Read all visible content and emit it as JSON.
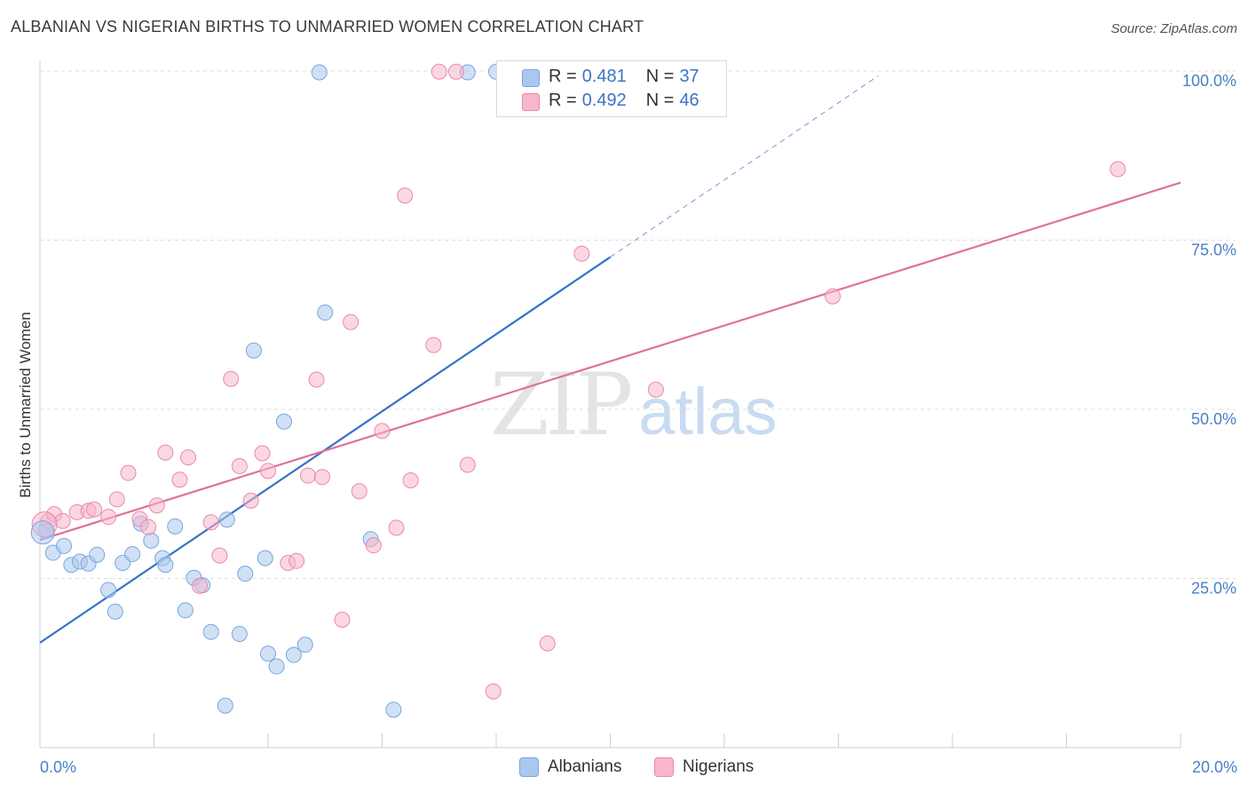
{
  "header": {
    "title": "ALBANIAN VS NIGERIAN BIRTHS TO UNMARRIED WOMEN CORRELATION CHART",
    "source": "Source: ZipAtlas.com"
  },
  "watermark": {
    "zip": "ZIP",
    "atlas": "atlas"
  },
  "legend": {
    "rows": [
      {
        "r_label": "R =",
        "r_value": "0.481",
        "n_label": "N =",
        "n_value": "37",
        "color": "#a9c8ef"
      },
      {
        "r_label": "R =",
        "r_value": "0.492",
        "n_label": "N =",
        "n_value": "46",
        "color": "#f7b6cb"
      }
    ]
  },
  "bottom_legend": [
    {
      "label": "Albanians",
      "color": "#a9c8ef"
    },
    {
      "label": "Nigerians",
      "color": "#f7b6cb"
    }
  ],
  "chart_data": {
    "type": "scatter",
    "title": "ALBANIAN VS NIGERIAN BIRTHS TO UNMARRIED WOMEN CORRELATION CHART",
    "xlabel": "",
    "ylabel": "Births to Unmarried Women",
    "xlim": [
      0,
      20
    ],
    "ylim": [
      0,
      100
    ],
    "x_ticks": [
      {
        "value": 0,
        "label": "0.0%"
      },
      {
        "value": 20,
        "label": "20.0%"
      }
    ],
    "y_ticks": [
      {
        "value": 25,
        "label": "25.0%"
      },
      {
        "value": 50,
        "label": "50.0%"
      },
      {
        "value": 75,
        "label": "75.0%"
      },
      {
        "value": 100,
        "label": "100.0%"
      }
    ],
    "grid": true,
    "series": [
      {
        "name": "Albanians",
        "color": "#a9c8ef",
        "stroke": "#7aa6de",
        "trend": {
          "x0": 0,
          "y0": 15.5,
          "x1": 10,
          "y1": 72.5,
          "dashed_to_x": 14.7,
          "color": "#3572c6"
        },
        "points": [
          [
            0.1,
            32.0
          ],
          [
            0.23,
            28.8
          ],
          [
            0.42,
            29.8
          ],
          [
            0.55,
            27.0
          ],
          [
            0.7,
            27.5
          ],
          [
            0.85,
            27.2
          ],
          [
            1.0,
            28.5
          ],
          [
            1.2,
            23.3
          ],
          [
            1.32,
            20.1
          ],
          [
            1.45,
            27.3
          ],
          [
            1.62,
            28.6
          ],
          [
            1.77,
            33.1
          ],
          [
            1.95,
            30.6
          ],
          [
            2.15,
            28.0
          ],
          [
            2.2,
            27.0
          ],
          [
            2.37,
            32.7
          ],
          [
            2.55,
            20.3
          ],
          [
            2.7,
            25.1
          ],
          [
            2.85,
            24.0
          ],
          [
            3.0,
            17.1
          ],
          [
            3.25,
            6.2
          ],
          [
            3.28,
            33.7
          ],
          [
            3.5,
            16.8
          ],
          [
            3.6,
            25.7
          ],
          [
            3.75,
            58.7
          ],
          [
            3.95,
            28.0
          ],
          [
            4.0,
            13.9
          ],
          [
            4.15,
            12.0
          ],
          [
            4.28,
            48.2
          ],
          [
            4.45,
            13.7
          ],
          [
            4.65,
            15.2
          ],
          [
            4.9,
            99.8
          ],
          [
            5.0,
            64.3
          ],
          [
            5.8,
            30.8
          ],
          [
            6.2,
            5.6
          ],
          [
            7.5,
            99.8
          ],
          [
            8.0,
            99.9
          ]
        ]
      },
      {
        "name": "Nigerians",
        "color": "#f7b6cb",
        "stroke": "#e88aa9",
        "trend": {
          "x0": 0,
          "y0": 30.7,
          "x1": 20,
          "y1": 83.5,
          "color": "#e0709a"
        },
        "points": [
          [
            0.15,
            33.5
          ],
          [
            0.25,
            34.5
          ],
          [
            0.4,
            33.5
          ],
          [
            0.65,
            34.8
          ],
          [
            0.85,
            35.0
          ],
          [
            0.95,
            35.2
          ],
          [
            1.2,
            34.1
          ],
          [
            1.35,
            36.7
          ],
          [
            1.55,
            40.6
          ],
          [
            1.75,
            33.8
          ],
          [
            1.9,
            32.6
          ],
          [
            2.05,
            35.8
          ],
          [
            2.2,
            43.6
          ],
          [
            2.45,
            39.6
          ],
          [
            2.6,
            42.9
          ],
          [
            2.8,
            23.9
          ],
          [
            3.0,
            33.3
          ],
          [
            3.15,
            28.4
          ],
          [
            3.35,
            54.5
          ],
          [
            3.5,
            41.6
          ],
          [
            3.7,
            36.5
          ],
          [
            3.9,
            43.5
          ],
          [
            4.0,
            40.9
          ],
          [
            4.35,
            27.3
          ],
          [
            4.5,
            27.6
          ],
          [
            4.7,
            40.2
          ],
          [
            4.85,
            54.4
          ],
          [
            4.95,
            40.0
          ],
          [
            5.3,
            18.9
          ],
          [
            5.45,
            62.9
          ],
          [
            5.6,
            37.9
          ],
          [
            5.85,
            29.9
          ],
          [
            6.0,
            46.8
          ],
          [
            6.25,
            32.5
          ],
          [
            6.4,
            81.6
          ],
          [
            6.5,
            39.5
          ],
          [
            6.9,
            59.5
          ],
          [
            7.0,
            99.9
          ],
          [
            7.3,
            99.9
          ],
          [
            7.5,
            41.8
          ],
          [
            7.95,
            8.3
          ],
          [
            8.9,
            15.4
          ],
          [
            9.5,
            73.0
          ],
          [
            10.8,
            52.9
          ],
          [
            13.9,
            66.7
          ],
          [
            18.9,
            85.5
          ]
        ]
      }
    ]
  }
}
